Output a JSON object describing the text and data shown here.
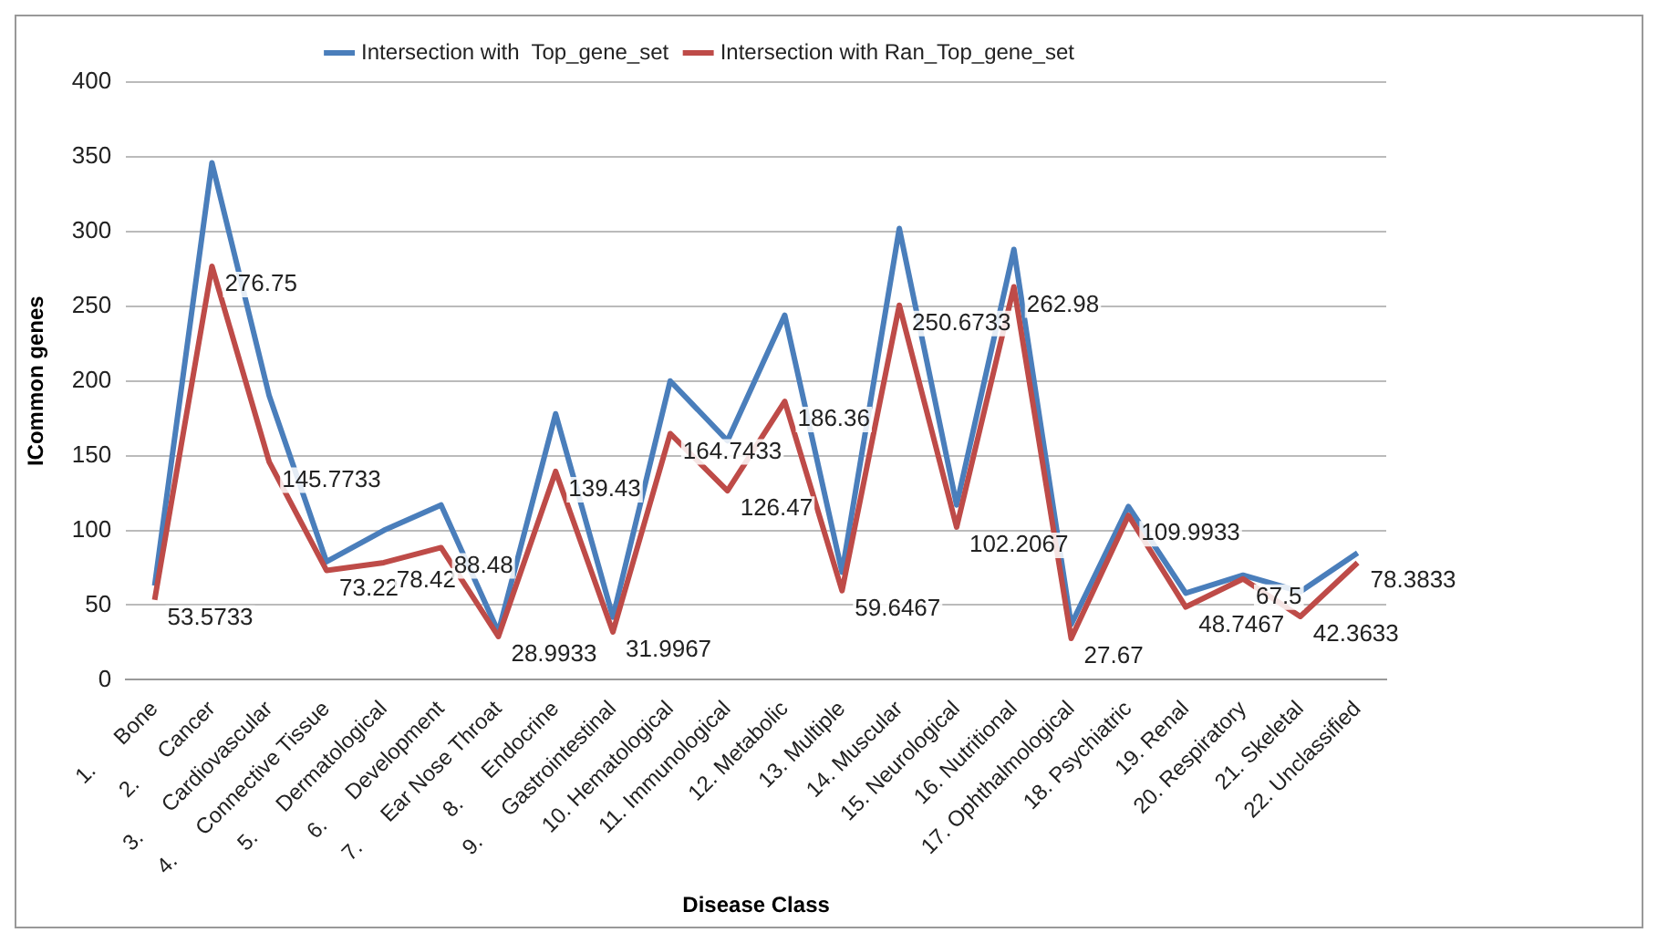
{
  "chart_data": {
    "type": "line",
    "xlabel": "Disease Class",
    "ylabel": "ICommon genes",
    "categories": [
      "1.      Bone",
      "2.      Cancer",
      "3.      Cardiovascular",
      "4.      Connective Tissue",
      "5.      Dermatological",
      "6.      Development",
      "7.      Ear Nose Throat",
      "8.      Endocrine",
      "9.      Gastrointestinal",
      "10. Hematological",
      "11. Immunological",
      "12. Metabolic",
      "13. Multiple",
      "14. Muscular",
      "15. Neurological",
      "16. Nutritional",
      "17. Ophthalmological",
      "18. Psychiatric",
      "19. Renal",
      "20. Respiratory",
      "21. Skeletal",
      "22. Unclassified"
    ],
    "series": [
      {
        "name": "Intersection with  Top_gene_set",
        "color": "#4a7ebb",
        "values": [
          63,
          346,
          190,
          79,
          100,
          117,
          32,
          178,
          42,
          200,
          160,
          244,
          72,
          302,
          117,
          288,
          37,
          116,
          58,
          70,
          59,
          85
        ]
      },
      {
        "name": "Intersection with Ran_Top_gene_set",
        "color": "#be4b48",
        "values": [
          53.5733,
          276.75,
          145.7733,
          73.22,
          78.42,
          88.48,
          28.9933,
          139.43,
          31.9967,
          164.7433,
          126.47,
          186.36,
          59.6467,
          250.6733,
          102.2067,
          262.98,
          27.67,
          109.9933,
          48.7467,
          67.5,
          42.3633,
          78.3833
        ],
        "value_labels": [
          "53.5733",
          "276.75",
          "145.7733",
          "73.22",
          "78.42",
          "88.48",
          "28.9933",
          "139.43",
          "31.9967",
          "164.7433",
          "126.47",
          "186.36",
          "59.6467",
          "250.6733",
          "102.2067",
          "262.98",
          "27.67",
          "109.9933",
          "48.7467",
          "67.5",
          "42.3633",
          "78.3833"
        ]
      }
    ],
    "ylim": [
      0,
      400
    ],
    "yticks": [
      0,
      50,
      100,
      150,
      200,
      250,
      300,
      350,
      400
    ],
    "grid": "y",
    "legend": "top",
    "marker": "none",
    "line_style": "solid"
  }
}
